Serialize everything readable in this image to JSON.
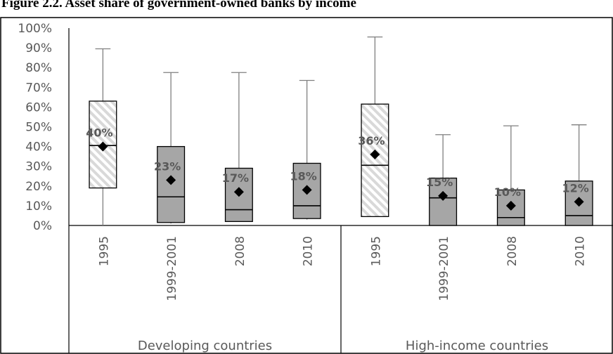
{
  "chart_data": {
    "type": "box",
    "title": "Figure 2.2. Asset share of government-owned banks by income",
    "xlabel": "",
    "ylabel": "",
    "ylim": [
      0,
      100
    ],
    "yticks": [
      "0%",
      "10%",
      "20%",
      "30%",
      "40%",
      "50%",
      "60%",
      "70%",
      "80%",
      "90%",
      "100%"
    ],
    "grid": false,
    "legend": "none",
    "colors": {
      "box_fill": "#a6a6a6",
      "hatch_fill": "#d9d9d9",
      "stroke": "#000000",
      "whisker": "#7f7f7f"
    },
    "groups": [
      {
        "name": "Developing countries",
        "boxes": [
          {
            "category": "1995",
            "min": 0,
            "q1": 19,
            "median": 40.5,
            "q3": 63,
            "max": 89.5,
            "mean": 40,
            "mean_label": "40%",
            "style": "hatched"
          },
          {
            "category": "1999-2001",
            "min": 1,
            "q1": 1.5,
            "median": 14.5,
            "q3": 40,
            "max": 77.5,
            "mean": 23,
            "mean_label": "23%",
            "style": "solid"
          },
          {
            "category": "2008",
            "min": 2,
            "q1": 2,
            "median": 8,
            "q3": 29,
            "max": 77.5,
            "mean": 17,
            "mean_label": "17%",
            "style": "solid"
          },
          {
            "category": "2010",
            "min": 3,
            "q1": 3.5,
            "median": 10,
            "q3": 31.5,
            "max": 73.5,
            "mean": 18,
            "mean_label": "18%",
            "style": "solid"
          }
        ]
      },
      {
        "name": "High-income countries",
        "boxes": [
          {
            "category": "1995",
            "min": 4.5,
            "q1": 4.5,
            "median": 30.5,
            "q3": 61.5,
            "max": 95.5,
            "mean": 36,
            "mean_label": "36%",
            "style": "hatched"
          },
          {
            "category": "1999-2001",
            "min": 0,
            "q1": 0,
            "median": 14,
            "q3": 24,
            "max": 46,
            "mean": 15,
            "mean_label": "15%",
            "style": "solid"
          },
          {
            "category": "2008",
            "min": 0,
            "q1": 0,
            "median": 4,
            "q3": 18,
            "max": 50.5,
            "mean": 10,
            "mean_label": "10%",
            "style": "solid"
          },
          {
            "category": "2010",
            "min": 0,
            "q1": 0,
            "median": 5,
            "q3": 22.5,
            "max": 51,
            "mean": 12,
            "mean_label": "12%",
            "style": "solid"
          }
        ]
      }
    ]
  }
}
